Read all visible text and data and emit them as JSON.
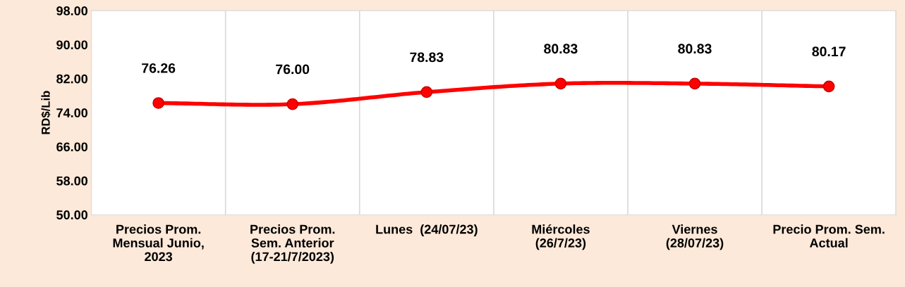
{
  "chart_data": {
    "type": "line",
    "ylabel": "RD$/Lib",
    "categories": [
      "Precios Prom.\nMensual Junio,\n2023",
      "Precios Prom.\nSem. Anterior\n(17-21/7/2023)",
      "Lunes  (24/07/23)",
      "Miércoles\n(26/7/23)",
      "Viernes\n(28/07/23)",
      "Precio Prom. Sem.\nActual"
    ],
    "series": [
      {
        "color": "#ff0000",
        "values": [
          76.26,
          76.0,
          78.83,
          80.83,
          80.83,
          80.17
        ],
        "value_labels": [
          "76.26",
          "76.00",
          "78.83",
          "80.83",
          "80.83",
          "80.17"
        ]
      }
    ],
    "ylim": [
      50,
      98
    ],
    "yticks": [
      {
        "value": 50,
        "label": "50.00"
      },
      {
        "value": 58,
        "label": "58.00"
      },
      {
        "value": 66,
        "label": "66.00"
      },
      {
        "value": 74,
        "label": "74.00"
      },
      {
        "value": 82,
        "label": "82.00"
      },
      {
        "value": 90,
        "label": "90.00"
      },
      {
        "value": 98,
        "label": "98.00"
      }
    ],
    "grid": "x",
    "marker": "circle",
    "line_style": "solid",
    "legend": false
  }
}
